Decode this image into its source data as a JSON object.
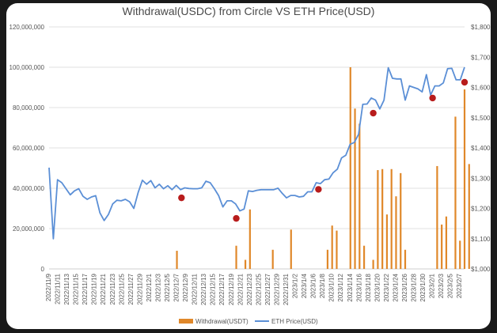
{
  "chart_data": {
    "type": "bar+line",
    "title": "Withdrawal(USDC) from Circle VS ETH Price(USD)",
    "y_left": {
      "ylim": [
        0,
        120000000
      ],
      "ticks": [
        "0",
        "20,000,000",
        "40,000,000",
        "60,000,000",
        "80,000,000",
        "100,000,000",
        "120,000,000"
      ]
    },
    "y_right": {
      "ylim": [
        1000,
        1800
      ],
      "ticks": [
        "$1,000",
        "$1,100",
        "$1,200",
        "$1,300",
        "$1,400",
        "$1,500",
        "$1,600",
        "$1,700",
        "$1,800"
      ]
    },
    "x_start_date": "2022-11-09",
    "x_end_date": "2023-02-08",
    "x_tick_labels": [
      "2022/11/9",
      "2022/11/11",
      "2022/11/13",
      "2022/11/15",
      "2022/11/17",
      "2022/11/19",
      "2022/11/21",
      "2022/11/23",
      "2022/11/25",
      "2022/11/27",
      "2022/11/29",
      "2022/12/1",
      "2022/12/3",
      "2022/12/5",
      "2022/12/7",
      "2022/12/9",
      "2022/12/11",
      "2022/12/13",
      "2022/12/15",
      "2022/12/17",
      "2022/12/19",
      "2022/12/21",
      "2022/12/23",
      "2022/12/25",
      "2022/12/27",
      "2022/12/29",
      "2022/12/31",
      "2023/1/2",
      "2023/1/4",
      "2023/1/6",
      "2023/1/8",
      "2023/1/10",
      "2023/1/12",
      "2023/1/14",
      "2023/1/16",
      "2023/1/18",
      "2023/1/20",
      "2023/1/22",
      "2023/1/24",
      "2023/1/26",
      "2023/1/28",
      "2023/1/30",
      "2023/2/1",
      "2023/2/3",
      "2023/2/5",
      "2023/2/7"
    ],
    "series": [
      {
        "name": "Withdrawal(USDT)",
        "type": "bar",
        "color": "#e0882a",
        "axis": "left",
        "points": [
          {
            "date": "2022-12-07",
            "value": 9000000
          },
          {
            "date": "2022-12-20",
            "value": 11500000
          },
          {
            "date": "2022-12-22",
            "value": 4500000
          },
          {
            "date": "2022-12-23",
            "value": 29500000
          },
          {
            "date": "2022-12-28",
            "value": 9500000
          },
          {
            "date": "2023-01-01",
            "value": 19500000
          },
          {
            "date": "2023-01-09",
            "value": 9500000
          },
          {
            "date": "2023-01-10",
            "value": 21500000
          },
          {
            "date": "2023-01-11",
            "value": 19000000
          },
          {
            "date": "2023-01-14",
            "value": 100000000
          },
          {
            "date": "2023-01-15",
            "value": 79500000
          },
          {
            "date": "2023-01-16",
            "value": 72000000
          },
          {
            "date": "2023-01-17",
            "value": 11500000
          },
          {
            "date": "2023-01-19",
            "value": 4500000
          },
          {
            "date": "2023-01-20",
            "value": 49000000
          },
          {
            "date": "2023-01-21",
            "value": 49500000
          },
          {
            "date": "2023-01-22",
            "value": 27000000
          },
          {
            "date": "2023-01-23",
            "value": 49500000
          },
          {
            "date": "2023-01-24",
            "value": 36000000
          },
          {
            "date": "2023-01-25",
            "value": 47500000
          },
          {
            "date": "2023-01-26",
            "value": 9500000
          },
          {
            "date": "2023-02-02",
            "value": 51000000
          },
          {
            "date": "2023-02-03",
            "value": 22000000
          },
          {
            "date": "2023-02-04",
            "value": 26000000
          },
          {
            "date": "2023-02-06",
            "value": 75500000
          },
          {
            "date": "2023-02-07",
            "value": 14000000
          },
          {
            "date": "2023-02-08",
            "value": 89000000
          },
          {
            "date": "2023-02-09",
            "value": 52000000
          }
        ]
      },
      {
        "name": "ETH Price(USD)",
        "type": "line",
        "color": "#5b8fd6",
        "axis": "right",
        "values": [
          1335,
          1100,
          1295,
          1285,
          1265,
          1245,
          1258,
          1265,
          1240,
          1230,
          1238,
          1242,
          1185,
          1160,
          1180,
          1215,
          1227,
          1225,
          1230,
          1222,
          1200,
          1252,
          1293,
          1280,
          1292,
          1268,
          1280,
          1265,
          1275,
          1262,
          1276,
          1262,
          1268,
          1266,
          1265,
          1265,
          1268,
          1290,
          1285,
          1265,
          1242,
          1205,
          1225,
          1225,
          1215,
          1192,
          1198,
          1258,
          1256,
          1260,
          1262,
          1262,
          1262,
          1262,
          1267,
          1250,
          1235,
          1243,
          1243,
          1238,
          1240,
          1255,
          1255,
          1285,
          1282,
          1295,
          1297,
          1318,
          1330,
          1367,
          1376,
          1412,
          1418,
          1445,
          1544,
          1545,
          1565,
          1558,
          1529,
          1558,
          1665,
          1630,
          1628,
          1628,
          1558,
          1605,
          1600,
          1595,
          1585,
          1642,
          1575,
          1605,
          1605,
          1615,
          1662,
          1663,
          1625,
          1625,
          1667
        ]
      }
    ],
    "markers": {
      "color": "#b81c1c",
      "points": [
        {
          "date": "2022-12-08",
          "price": 1235
        },
        {
          "date": "2022-12-20",
          "price": 1167
        },
        {
          "date": "2023-01-07",
          "price": 1263
        },
        {
          "date": "2023-01-19",
          "price": 1515
        },
        {
          "date": "2023-02-01",
          "price": 1565
        },
        {
          "date": "2023-02-08",
          "price": 1617
        }
      ]
    },
    "legend": {
      "position": "bottom",
      "items": [
        "Withdrawal(USDT)",
        "ETH Price(USD)"
      ]
    },
    "grid": {
      "horizontal": true,
      "color": "#d9d9d9"
    }
  }
}
